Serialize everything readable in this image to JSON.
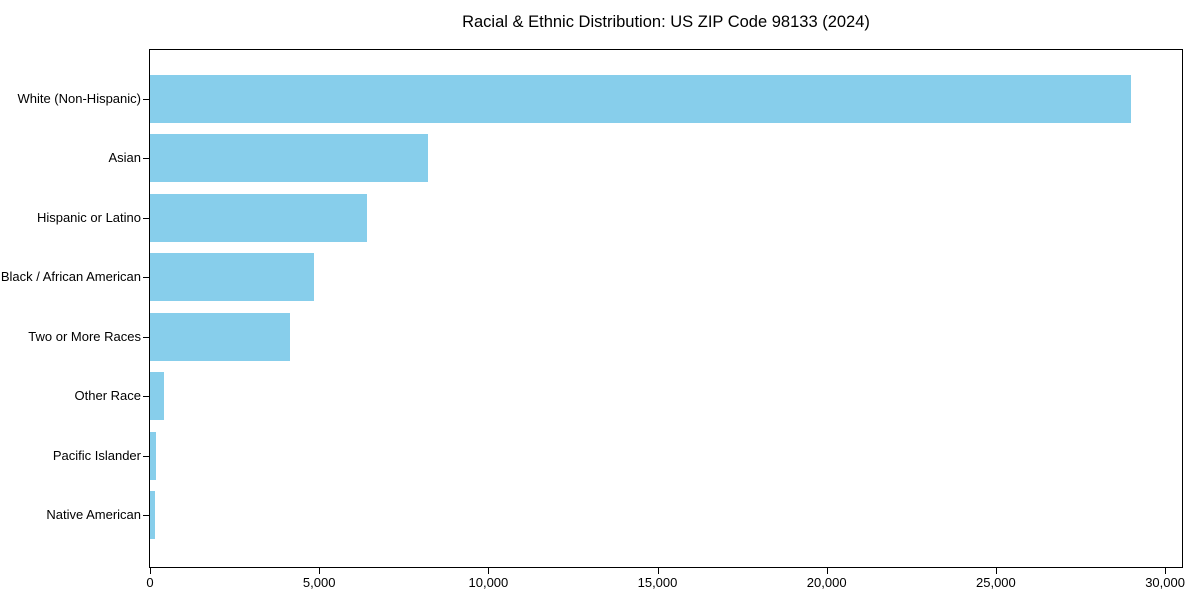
{
  "figure": {
    "background_color": "#ffffff",
    "axis_color": "#000000",
    "text_color": "#000000"
  },
  "chart_data": {
    "type": "bar",
    "orientation": "horizontal",
    "title": "Racial & Ethnic Distribution: US ZIP Code 98133 (2024)",
    "xlabel": "",
    "ylabel": "",
    "categories": [
      "White (Non-Hispanic)",
      "Asian",
      "Hispanic or Latino",
      "Black / African American",
      "Two or More Races",
      "Other Race",
      "Pacific Islander",
      "Native American"
    ],
    "values": [
      29000,
      8200,
      6400,
      4850,
      4150,
      400,
      180,
      150
    ],
    "bar_color": "#87CEEB",
    "xlim": [
      0,
      30500
    ],
    "xticks": [
      0,
      5000,
      10000,
      15000,
      20000,
      25000,
      30000
    ],
    "xtick_labels": [
      "0",
      "5,000",
      "10,000",
      "15,000",
      "20,000",
      "25,000",
      "30,000"
    ],
    "grid": false,
    "legend": null
  }
}
